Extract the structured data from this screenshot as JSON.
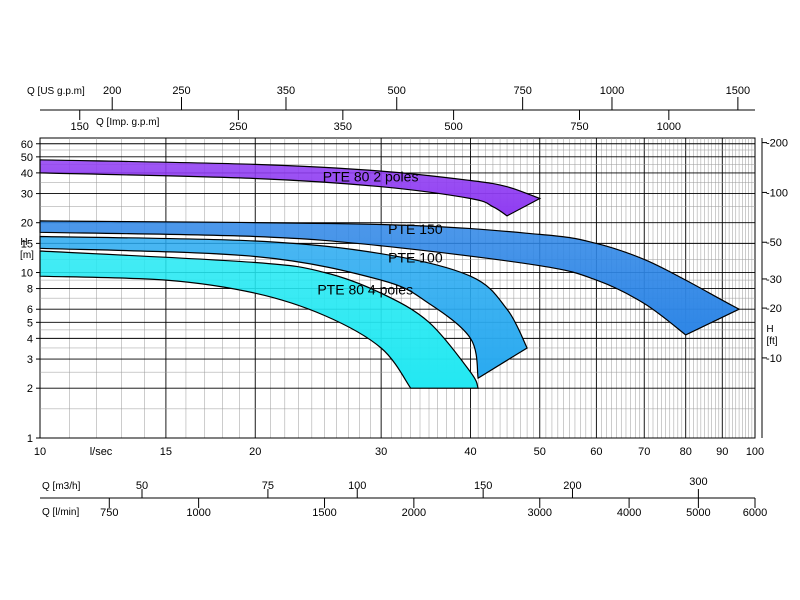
{
  "chart_data": {
    "type": "area",
    "title": "",
    "axes": {
      "x_main": {
        "unit_label": "l/sec",
        "scale": "log",
        "range": [
          10,
          100
        ],
        "ticks": [
          "10",
          "15",
          "20",
          "30",
          "40",
          "50",
          "60",
          "70",
          "80",
          "90",
          "100"
        ]
      },
      "y_left": {
        "label_line1": "H",
        "label_line2": "[m]",
        "scale": "log",
        "range": [
          1,
          65
        ],
        "ticks": [
          "1",
          "2",
          "3",
          "4",
          "5",
          "6",
          "8",
          "10",
          "15",
          "20",
          "30",
          "40",
          "50",
          "60"
        ]
      },
      "y_right": {
        "label_line1": "H",
        "label_line2": "[ft]",
        "ticks": [
          "10",
          "20",
          "30",
          "50",
          "100",
          "200"
        ]
      },
      "top_us": {
        "label": "Q [US g.p.m]",
        "ticks": [
          "200",
          "250",
          "350",
          "500",
          "750",
          "1000",
          "1500"
        ]
      },
      "top_imp": {
        "label": "Q [Imp. g.p.m]",
        "ticks": [
          "150",
          "250",
          "350",
          "500",
          "750",
          "1000"
        ]
      },
      "bottom_m3h": {
        "label": "Q [m3/h]",
        "ticks": [
          "50",
          "75",
          "100",
          "150",
          "200",
          "300"
        ]
      },
      "bottom_lmin": {
        "label": "Q [l/min]",
        "ticks": [
          "750",
          "1000",
          "1500",
          "2000",
          "3000",
          "4000",
          "5000",
          "6000"
        ]
      }
    },
    "series": [
      {
        "name": "PTE 80 2 poles",
        "color": "#8f3cf2",
        "upper": [
          [
            10,
            48
          ],
          [
            20,
            45
          ],
          [
            30,
            41
          ],
          [
            40,
            36
          ],
          [
            45,
            33
          ],
          [
            50,
            28
          ]
        ],
        "lower": [
          [
            10,
            40
          ],
          [
            20,
            37
          ],
          [
            30,
            33
          ],
          [
            40,
            28
          ],
          [
            43,
            25
          ],
          [
            45,
            22
          ]
        ]
      },
      {
        "name": "PTE 150",
        "color": "#2e86e6",
        "upper": [
          [
            10,
            20.5
          ],
          [
            30,
            19.5
          ],
          [
            50,
            17
          ],
          [
            60,
            15
          ],
          [
            70,
            12
          ],
          [
            80,
            9
          ],
          [
            90,
            6.8
          ],
          [
            95,
            6
          ]
        ],
        "lower": [
          [
            10,
            17.5
          ],
          [
            20,
            16.5
          ],
          [
            30,
            14.5
          ],
          [
            50,
            11
          ],
          [
            60,
            9
          ],
          [
            70,
            6.5
          ],
          [
            80,
            4.2
          ]
        ]
      },
      {
        "name": "PTE 100",
        "color": "#2aaaf0",
        "upper": [
          [
            10,
            16.5
          ],
          [
            20,
            15.5
          ],
          [
            30,
            13
          ],
          [
            40,
            9.5
          ],
          [
            45,
            6
          ],
          [
            48,
            3.5
          ]
        ],
        "lower": [
          [
            10,
            14
          ],
          [
            20,
            12.5
          ],
          [
            30,
            9
          ],
          [
            35,
            6.5
          ],
          [
            40,
            4
          ],
          [
            41,
            2.3
          ]
        ]
      },
      {
        "name": "PTE 80 4 poles",
        "color": "#23e8f2",
        "upper": [
          [
            10,
            13.5
          ],
          [
            20,
            11.5
          ],
          [
            25,
            10
          ],
          [
            30,
            7.5
          ],
          [
            35,
            5
          ],
          [
            40,
            2.5
          ],
          [
            41,
            2
          ]
        ],
        "lower": [
          [
            10,
            9.5
          ],
          [
            15,
            9
          ],
          [
            20,
            7.5
          ],
          [
            25,
            5.5
          ],
          [
            30,
            3.5
          ],
          [
            33,
            2
          ]
        ]
      }
    ]
  }
}
